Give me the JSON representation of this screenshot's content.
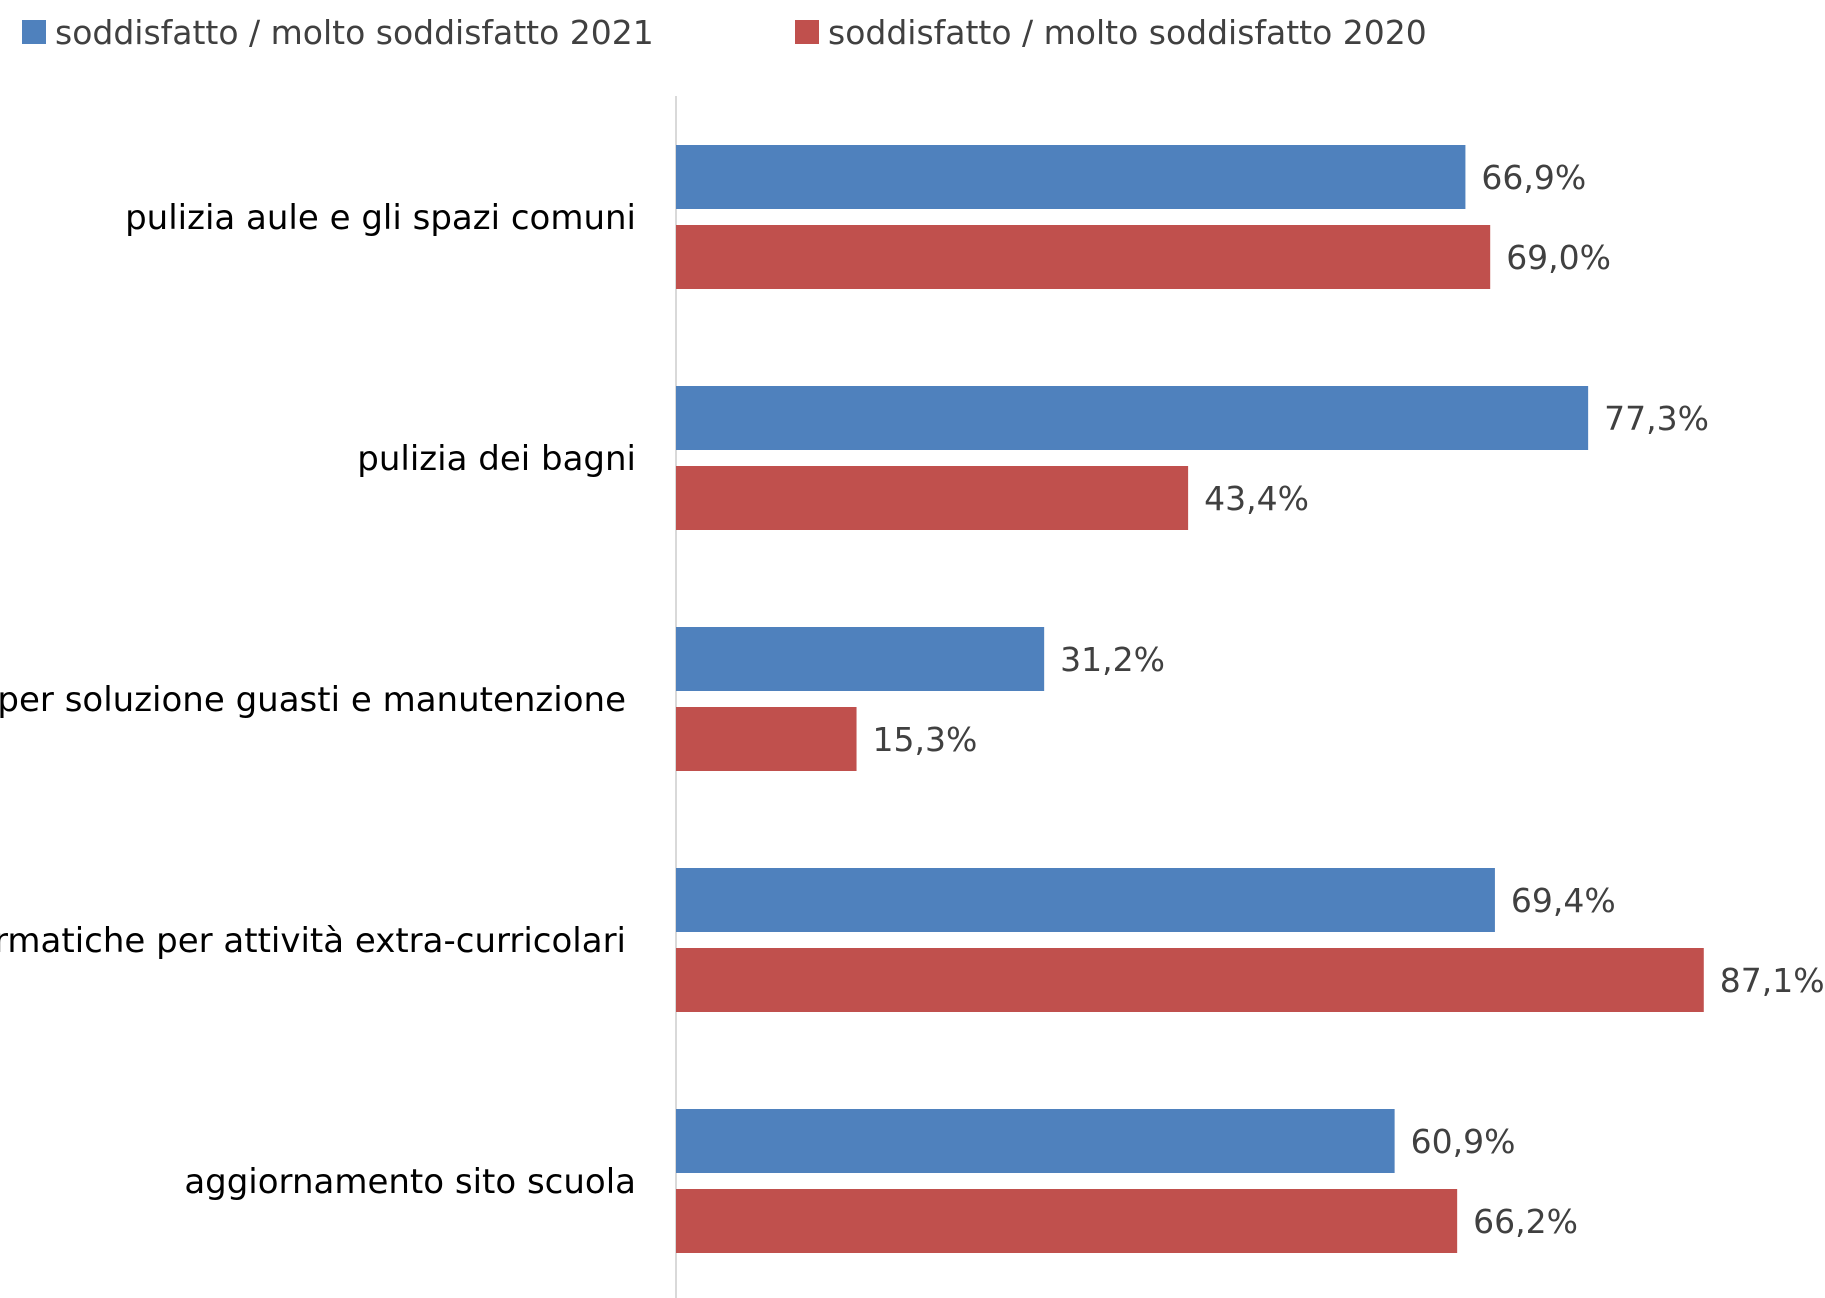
{
  "chart_data": {
    "type": "bar",
    "orientation": "horizontal",
    "categories": [
      "pulizia aule e gli spazi comuni",
      "pulizia dei bagni",
      "tempestività per soluzione guasti e manutenzione",
      "disponibilità aule informatiche per attività extra-curricolari",
      "aggiornamento sito scuola"
    ],
    "series": [
      {
        "name": "soddisfatto / molto soddisfatto 2021",
        "color": "#4f81bd",
        "values": [
          66.9,
          77.3,
          31.2,
          69.4,
          60.9
        ],
        "labels": [
          "66,9%",
          "77,3%",
          "31,2%",
          "69,4%",
          "60,9%"
        ]
      },
      {
        "name": "soddisfatto / molto soddisfatto 2020",
        "color": "#c0504d",
        "values": [
          69.0,
          43.4,
          15.3,
          87.1,
          66.2
        ],
        "labels": [
          "69,0%",
          "43,4%",
          "15,3%",
          "87,1%",
          "66,2%"
        ]
      }
    ],
    "title": "",
    "xlabel": "",
    "ylabel": "",
    "xlim": [
      0,
      100
    ],
    "legend_position": "top",
    "grid": false,
    "axis_color": "#d9d9d9"
  }
}
